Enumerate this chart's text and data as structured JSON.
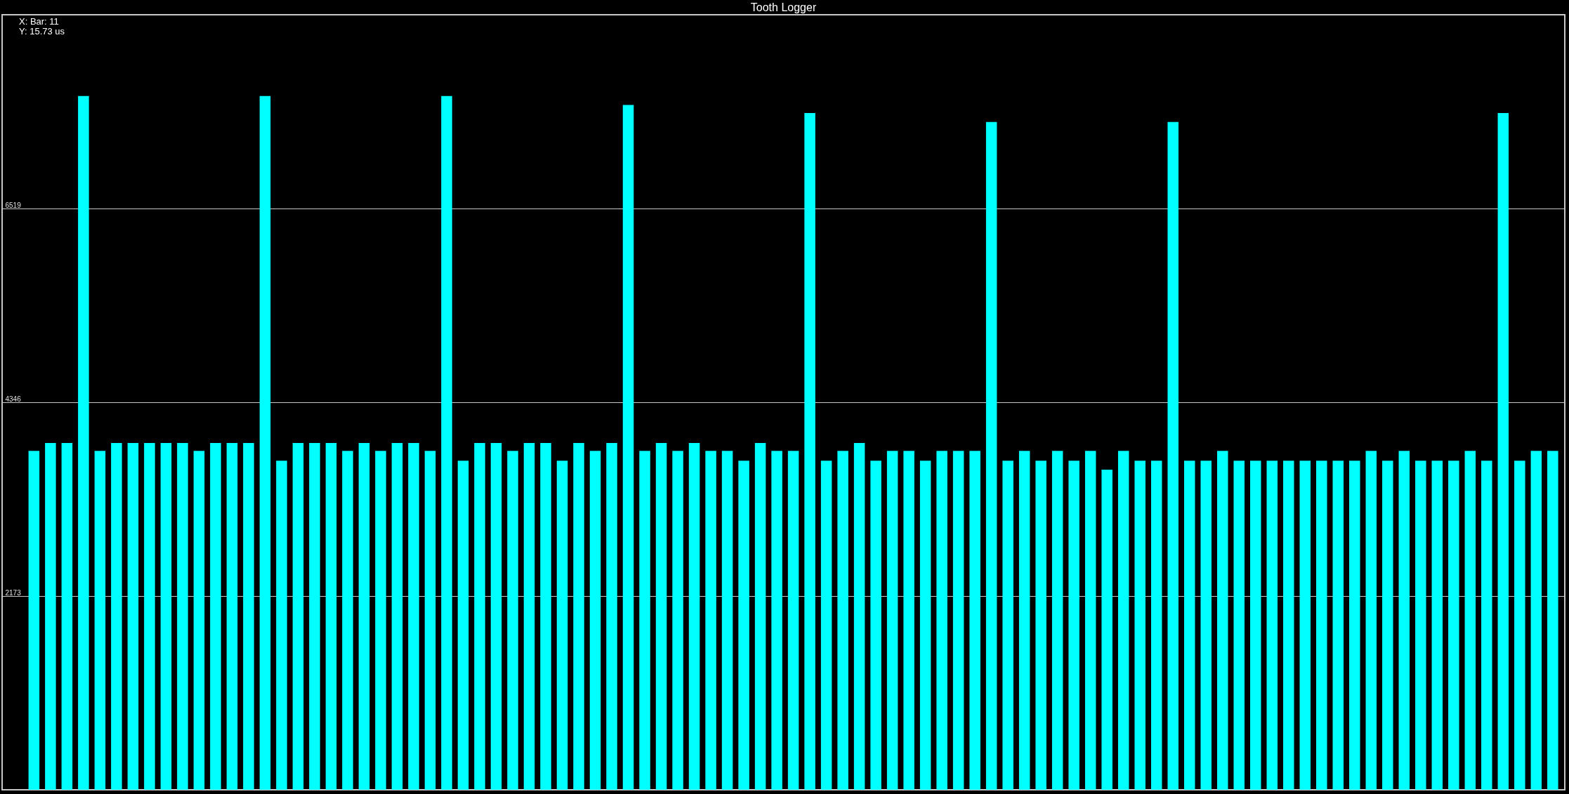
{
  "chart_data": {
    "type": "bar",
    "title": "Tooth Logger",
    "annotations": [
      "X: Bar: 11",
      "Y: 15.73 us"
    ],
    "categories": [
      null,
      null,
      null,
      null,
      null,
      null,
      null,
      null,
      null,
      null,
      null,
      null,
      null,
      null,
      null,
      null,
      null,
      null,
      null,
      null,
      null,
      null,
      null,
      null,
      null,
      null,
      null,
      null,
      null,
      null,
      null,
      null,
      null,
      null,
      null,
      null,
      null,
      null,
      null,
      null,
      null,
      null,
      null,
      null,
      null,
      null,
      null,
      null,
      null,
      null,
      null,
      null,
      null,
      null,
      null,
      null,
      null,
      null,
      null,
      null,
      null,
      null,
      null,
      null,
      null,
      null,
      null,
      null,
      null,
      null,
      null,
      null,
      null,
      null,
      null,
      null,
      null,
      null,
      null,
      null,
      null,
      null,
      null,
      null,
      null,
      null,
      null,
      null,
      null,
      null,
      null,
      null,
      null
    ],
    "values": [
      3800,
      3890,
      3890,
      7780,
      3800,
      3890,
      3890,
      3890,
      3890,
      3890,
      3800,
      3890,
      3890,
      3890,
      7780,
      3690,
      3890,
      3890,
      3890,
      3800,
      3890,
      3800,
      3890,
      3890,
      3800,
      7780,
      3690,
      3890,
      3890,
      3800,
      3890,
      3890,
      3690,
      3890,
      3800,
      3890,
      7680,
      3800,
      3890,
      3800,
      3890,
      3800,
      3800,
      3690,
      3890,
      3800,
      3800,
      7590,
      3690,
      3800,
      3890,
      3690,
      3800,
      3800,
      3690,
      3800,
      3800,
      3800,
      7490,
      3690,
      3800,
      3690,
      3800,
      3690,
      3800,
      3590,
      3800,
      3690,
      3690,
      7490,
      3690,
      3690,
      3800,
      3690,
      3690,
      3690,
      3690,
      3690,
      3690,
      3690,
      3690,
      3800,
      3690,
      3800,
      3690,
      3690,
      3690,
      3800,
      3690,
      7590,
      3690,
      3800,
      3800
    ],
    "color": "#00ffff",
    "ylim": [
      0,
      8692
    ],
    "yticks": [
      2173,
      4346,
      6519
    ],
    "grid": "y",
    "tick_labels": "y"
  }
}
